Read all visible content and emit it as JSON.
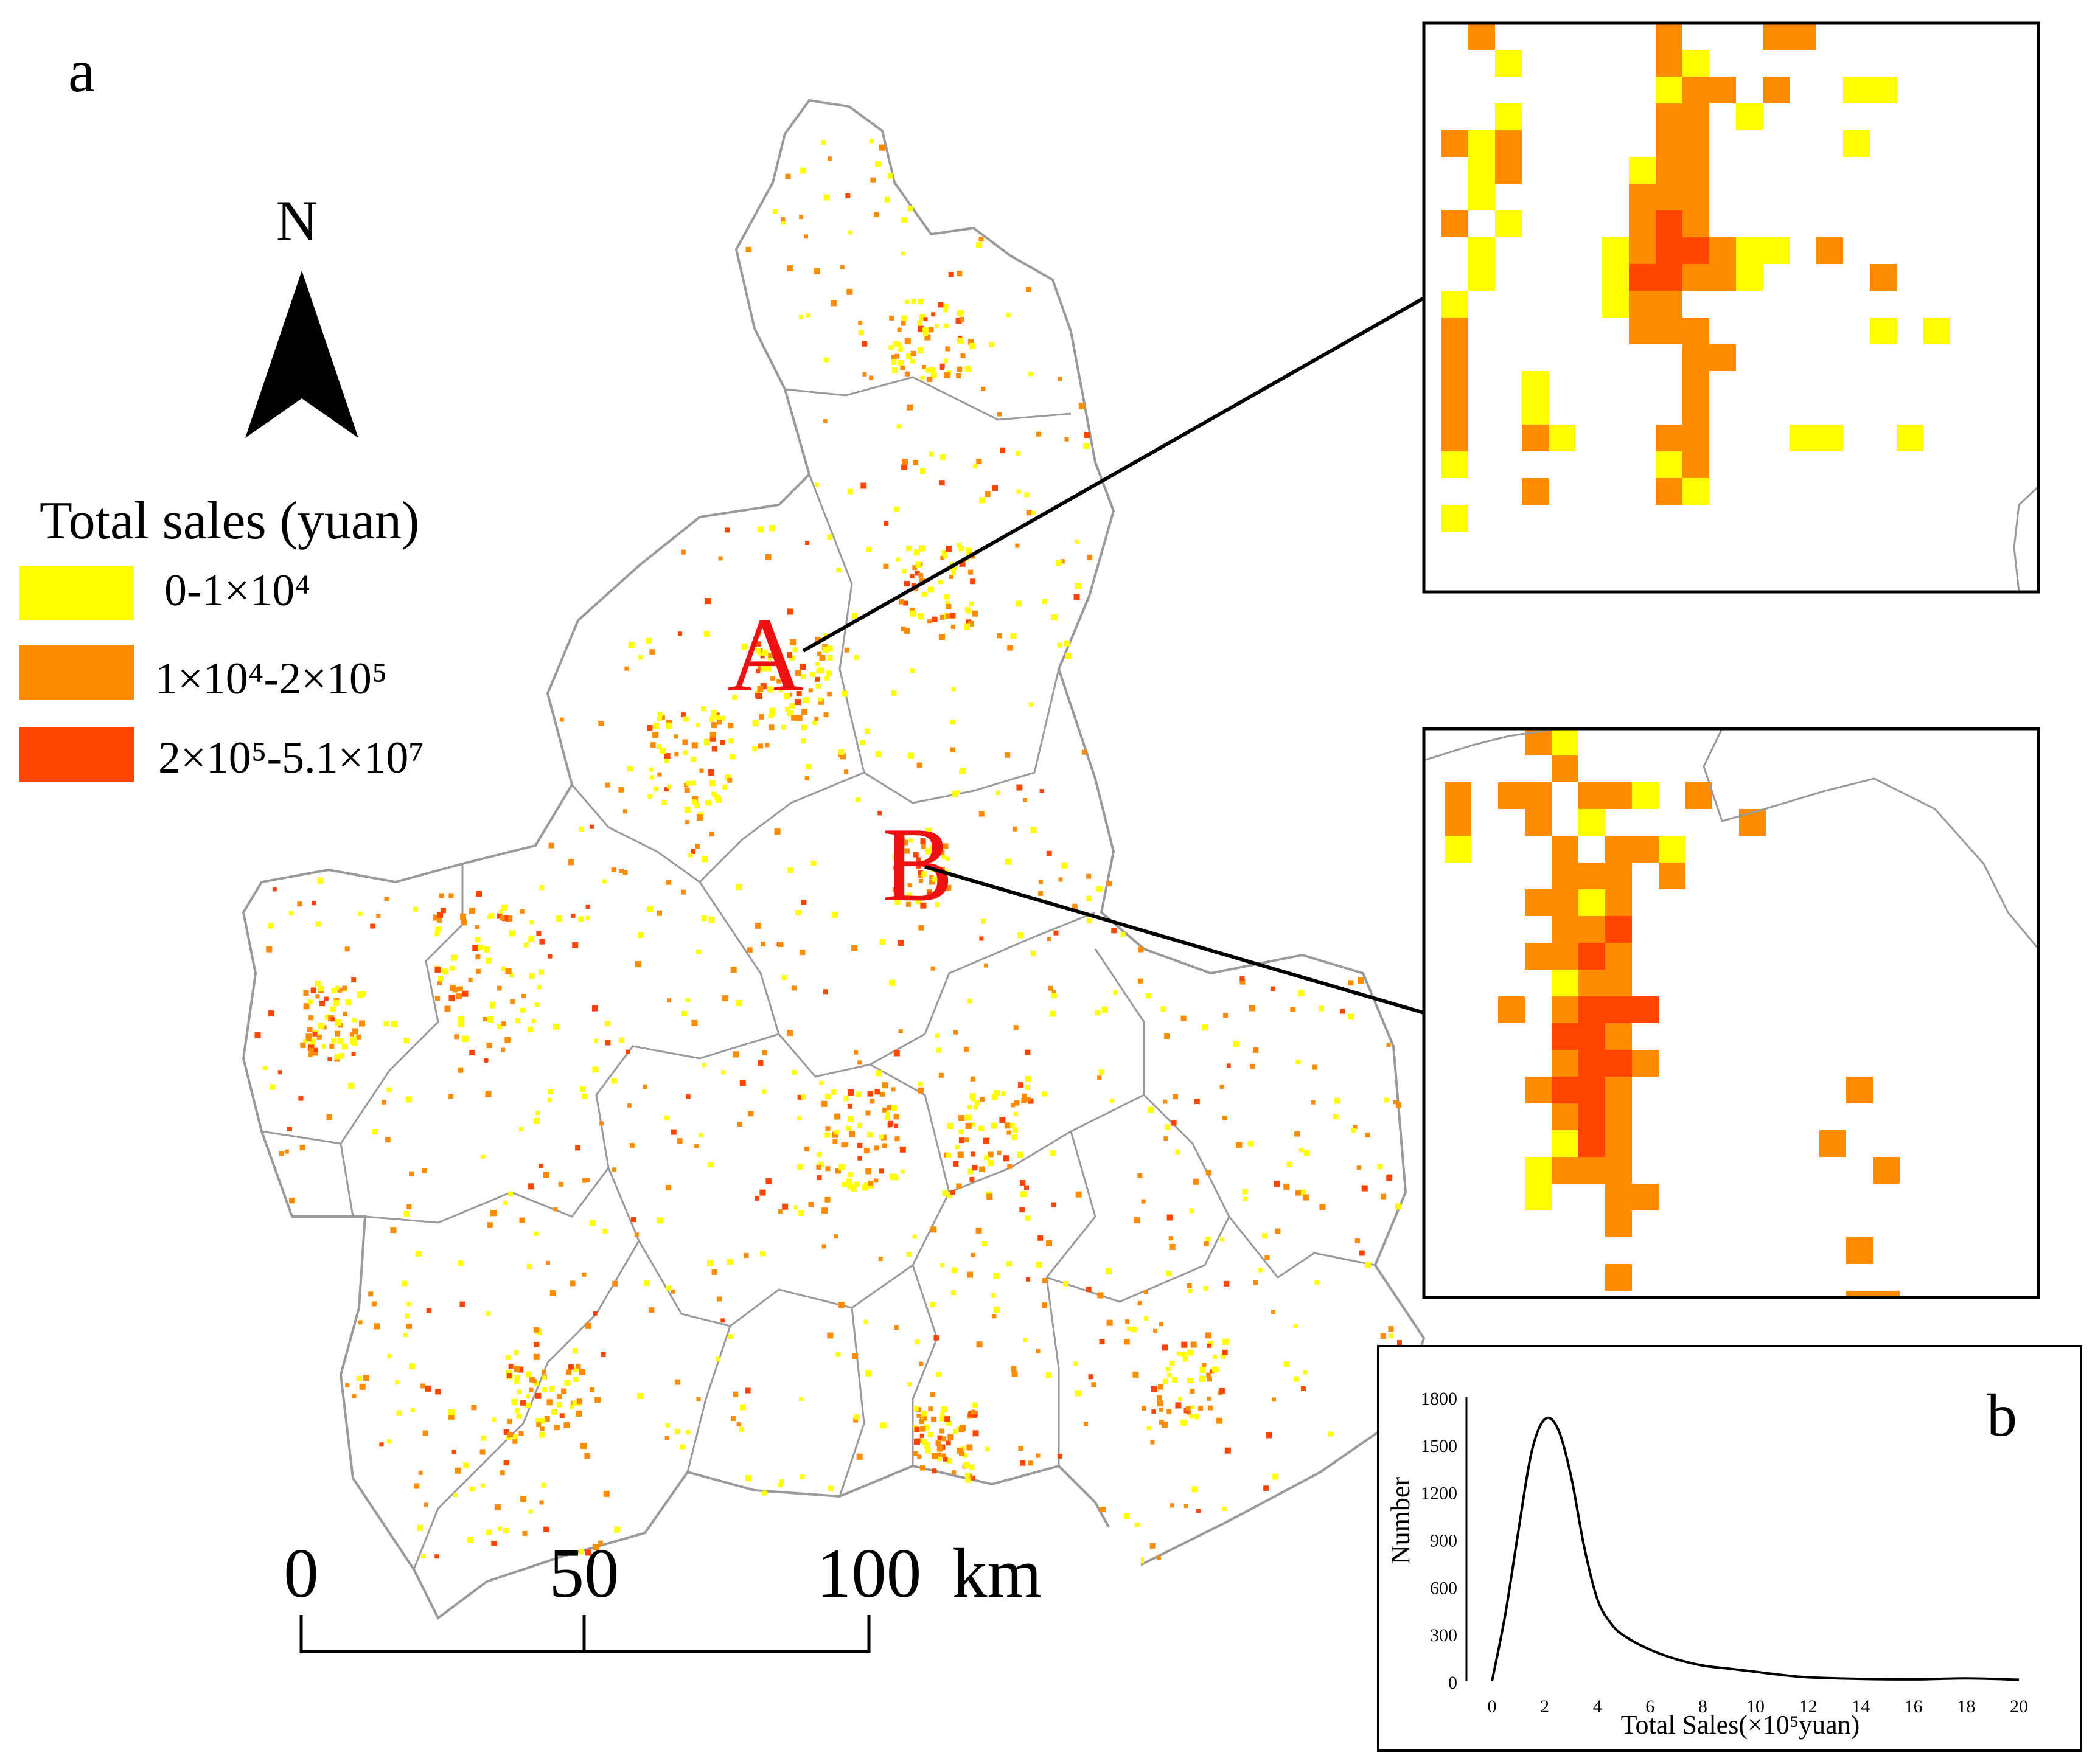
{
  "panel_a_label": "a",
  "panel_b_label": "b",
  "north_label": "N",
  "legend": {
    "title": "Total sales (yuan)",
    "items": [
      {
        "label": "0-1×10⁴",
        "color": "#FFFF00"
      },
      {
        "label": "1×10⁴-2×10⁵",
        "color": "#FF8C00"
      },
      {
        "label": "2×10⁵-5.1×10⁷",
        "color": "#FF4500"
      }
    ]
  },
  "scale_bar": {
    "ticks": [
      "0",
      "50",
      "100"
    ],
    "unit": "km"
  },
  "zoom_labels": {
    "a": "A",
    "b": "B"
  },
  "colors": {
    "yellow": "#FFFF00",
    "orange": "#FF8C00",
    "red_orange": "#FF4500",
    "marker_red": "#EE1111",
    "boundary": "#9A9A9A"
  },
  "chart_data": {
    "type": "line",
    "title": "",
    "xlabel": "Total Sales(×10⁵yuan)",
    "ylabel": "Number",
    "xlim": [
      0,
      20
    ],
    "ylim": [
      0,
      1800
    ],
    "x_ticks": [
      0,
      2,
      4,
      6,
      8,
      10,
      12,
      14,
      16,
      18,
      20
    ],
    "y_ticks": [
      0,
      300,
      600,
      900,
      1200,
      1500,
      1800
    ],
    "series": [
      {
        "x": [
          0,
          0.5,
          1,
          1.5,
          2,
          2.5,
          3,
          3.5,
          4,
          4.5,
          5,
          6,
          7,
          8,
          9,
          10,
          11,
          12,
          14,
          16,
          18,
          20
        ],
        "y": [
          0,
          420,
          950,
          1450,
          1660,
          1600,
          1300,
          850,
          520,
          370,
          290,
          200,
          140,
          100,
          80,
          60,
          40,
          25,
          15,
          12,
          18,
          10
        ]
      }
    ]
  }
}
